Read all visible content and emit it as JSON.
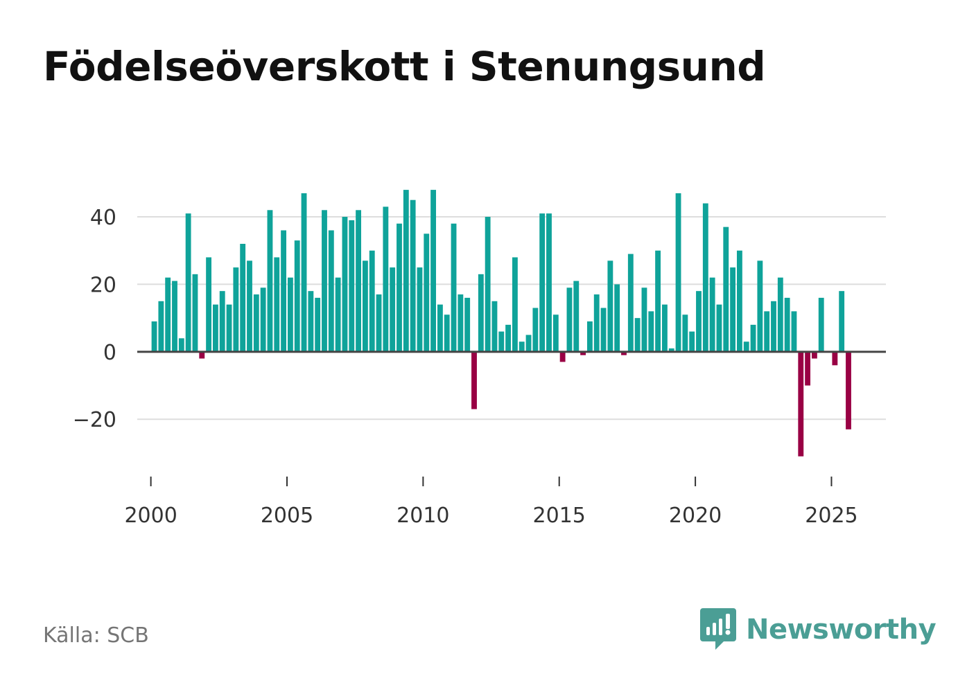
{
  "chart_data": {
    "type": "bar",
    "title": "Födelseöverskott i Stenungsund",
    "xlabel": "",
    "ylabel": "",
    "xlim": [
      1999.5,
      2027.0
    ],
    "ylim": [
      -37,
      55
    ],
    "x_ticks": [
      2000,
      2005,
      2010,
      2015,
      2020,
      2025
    ],
    "x_tick_labels": [
      "2000",
      "2005",
      "2010",
      "2015",
      "2020",
      "2025"
    ],
    "y_ticks": [
      -20,
      0,
      20,
      40
    ],
    "y_tick_labels": [
      "−20",
      "0",
      "20",
      "40"
    ],
    "grid": true,
    "legend": "none",
    "periodicity": "quarterly",
    "positive_color": "#0fa39a",
    "negative_color": "#990044",
    "x_start": 2000.125,
    "x_step": 0.25,
    "values": [
      9,
      15,
      22,
      21,
      4,
      41,
      23,
      -2,
      28,
      14,
      18,
      14,
      25,
      32,
      27,
      17,
      19,
      42,
      28,
      36,
      22,
      33,
      47,
      18,
      16,
      42,
      36,
      22,
      40,
      39,
      42,
      27,
      30,
      17,
      43,
      25,
      38,
      48,
      45,
      25,
      35,
      48,
      14,
      11,
      38,
      17,
      16,
      -17,
      23,
      40,
      15,
      6,
      8,
      28,
      3,
      5,
      13,
      41,
      41,
      11,
      -3,
      19,
      21,
      -1,
      9,
      17,
      13,
      27,
      20,
      -1,
      29,
      10,
      19,
      12,
      30,
      14,
      1,
      47,
      11,
      6,
      18,
      44,
      22,
      14,
      37,
      25,
      30,
      3,
      8,
      27,
      12,
      15,
      22,
      16,
      12,
      -31,
      -10,
      -2,
      16,
      0,
      -4,
      18,
      -23
    ]
  },
  "source": "Källa: SCB",
  "brand": {
    "name": "Newsworthy",
    "icon": "bar-chart-speech-bubble-icon",
    "color": "#4b9e95"
  },
  "colors": {
    "gridline": "#dddddd",
    "zero_line": "#444444",
    "tick": "#333333",
    "text": "#111111"
  }
}
